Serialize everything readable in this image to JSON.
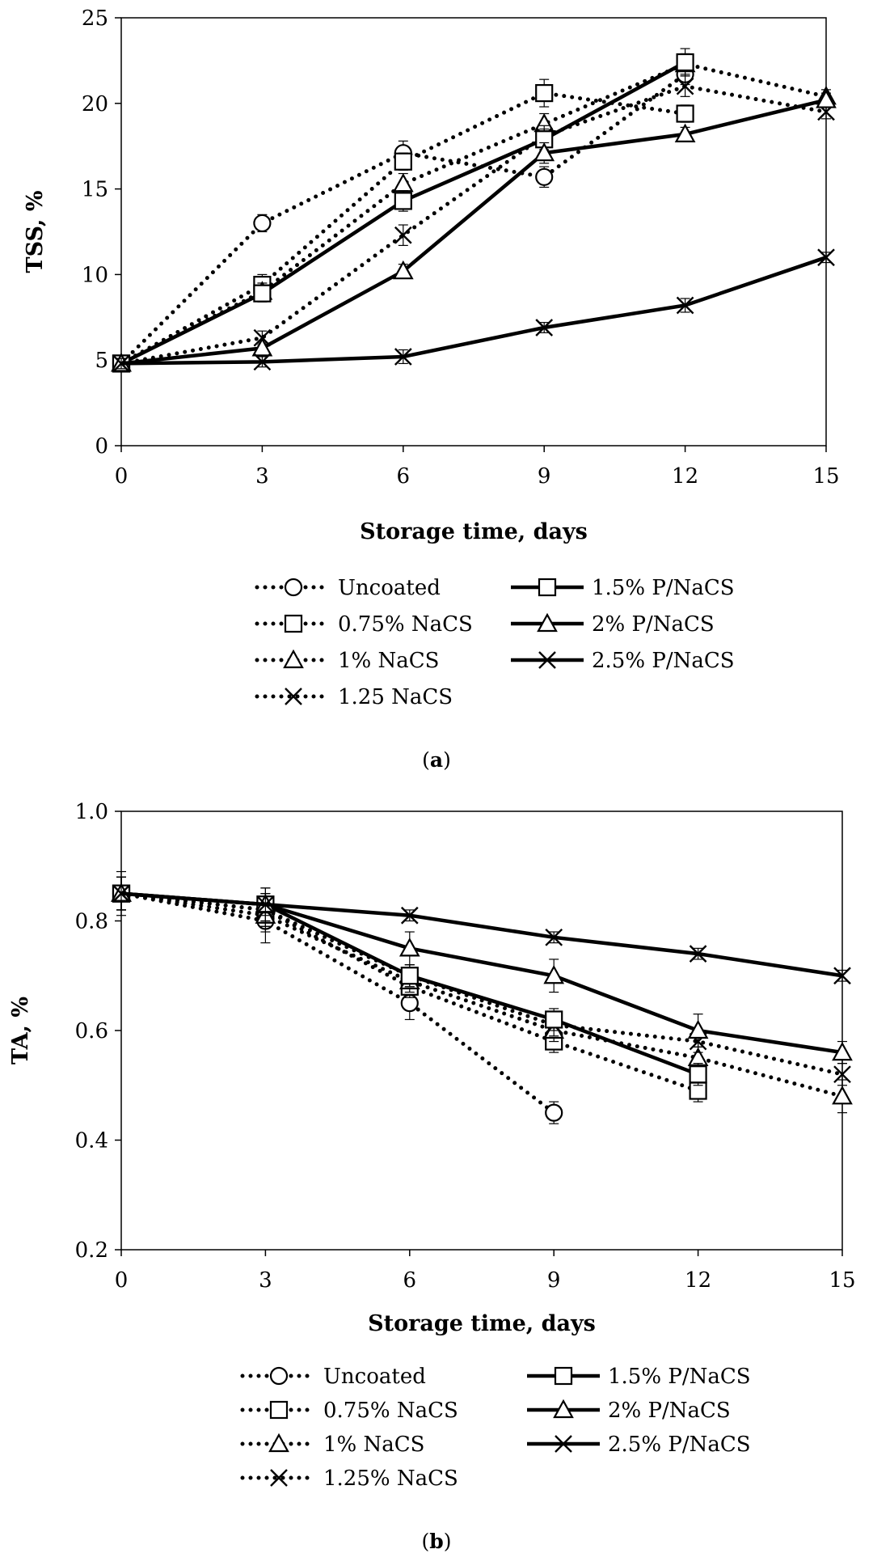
{
  "chart_data": [
    {
      "type": "line",
      "panel_label": "a",
      "xlabel": "Storage time, days",
      "ylabel": "TSS, %",
      "xlim": [
        0,
        15
      ],
      "ylim": [
        0,
        25
      ],
      "xticks": [
        0,
        3,
        6,
        9,
        12,
        15
      ],
      "yticks": [
        0,
        5,
        10,
        15,
        20,
        25
      ],
      "x": [
        0,
        3,
        6,
        9,
        12,
        15
      ],
      "series": [
        {
          "name": "Uncoated",
          "style": "dotted",
          "marker": "circle",
          "x": [
            0,
            3,
            6,
            9,
            12
          ],
          "values": [
            4.8,
            13.0,
            17.1,
            15.7,
            21.7
          ],
          "errors": [
            0.3,
            0.5,
            0.7,
            0.6,
            0.6
          ]
        },
        {
          "name": "0.75% NaCS",
          "style": "dotted",
          "marker": "square",
          "x": [
            0,
            3,
            6,
            9,
            12
          ],
          "values": [
            4.8,
            9.4,
            16.6,
            20.6,
            19.4
          ],
          "errors": [
            0.3,
            0.6,
            0.5,
            0.8,
            0.5
          ]
        },
        {
          "name": "1% NaCS",
          "style": "dotted",
          "marker": "triangle",
          "x": [
            0,
            3,
            6,
            9,
            12,
            15
          ],
          "values": [
            4.8,
            9.0,
            15.3,
            18.8,
            22.3,
            20.4
          ],
          "errors": [
            0.3,
            0.5,
            0.6,
            0.6,
            0.6,
            0.4
          ]
        },
        {
          "name": "1.25 NaCS",
          "style": "dotted",
          "marker": "x",
          "x": [
            0,
            3,
            6,
            9,
            12,
            15
          ],
          "values": [
            4.8,
            6.3,
            12.3,
            18.1,
            21.0,
            19.5
          ],
          "errors": [
            0.3,
            0.4,
            0.6,
            0.6,
            0.6,
            0.4
          ]
        },
        {
          "name": "1.5% P/NaCS",
          "style": "solid",
          "marker": "square",
          "x": [
            0,
            3,
            6,
            9,
            12
          ],
          "values": [
            4.8,
            8.9,
            14.3,
            17.9,
            22.4
          ],
          "errors": [
            0.3,
            0.5,
            0.6,
            0.6,
            0.8
          ]
        },
        {
          "name": "2% P/NaCS",
          "style": "solid",
          "marker": "triangle",
          "x": [
            0,
            3,
            6,
            9,
            12,
            15
          ],
          "values": [
            4.8,
            5.7,
            10.2,
            17.1,
            18.2,
            20.2
          ],
          "errors": [
            0.3,
            0.3,
            0.4,
            0.6,
            0.4,
            0.4
          ]
        },
        {
          "name": "2.5% P/NaCS",
          "style": "solid",
          "marker": "x",
          "x": [
            0,
            3,
            6,
            9,
            12,
            15
          ],
          "values": [
            4.8,
            4.9,
            5.2,
            6.9,
            8.2,
            11.0
          ],
          "errors": [
            0.3,
            0.3,
            0.4,
            0.3,
            0.4,
            0.3
          ]
        }
      ],
      "legend": {
        "left": [
          "Uncoated",
          "0.75% NaCS",
          "1% NaCS",
          "1.25 NaCS"
        ],
        "right": [
          "1.5% P/NaCS",
          "2% P/NaCS",
          "2.5% P/NaCS"
        ]
      }
    },
    {
      "type": "line",
      "panel_label": "b",
      "xlabel": "Storage time, days",
      "ylabel": "TA, %",
      "xlim": [
        0,
        15
      ],
      "ylim": [
        0.2,
        1.0
      ],
      "xticks": [
        0,
        3,
        6,
        9,
        12,
        15
      ],
      "yticks": [
        0.2,
        0.4,
        0.6,
        0.8,
        1.0
      ],
      "x": [
        0,
        3,
        6,
        9,
        12,
        15
      ],
      "series": [
        {
          "name": "Uncoated",
          "style": "dotted",
          "marker": "circle",
          "x": [
            0,
            3,
            6,
            9
          ],
          "values": [
            0.85,
            0.8,
            0.65,
            0.45
          ],
          "errors": [
            0.04,
            0.04,
            0.03,
            0.02
          ]
        },
        {
          "name": "0.75% NaCS",
          "style": "dotted",
          "marker": "square",
          "x": [
            0,
            3,
            6,
            9,
            12
          ],
          "values": [
            0.85,
            0.82,
            0.68,
            0.58,
            0.49
          ],
          "errors": [
            0.03,
            0.03,
            0.02,
            0.02,
            0.02
          ]
        },
        {
          "name": "1% NaCS",
          "style": "dotted",
          "marker": "triangle",
          "x": [
            0,
            3,
            6,
            9,
            12,
            15
          ],
          "values": [
            0.85,
            0.81,
            0.69,
            0.6,
            0.55,
            0.48
          ],
          "errors": [
            0.03,
            0.03,
            0.02,
            0.02,
            0.02,
            0.03
          ]
        },
        {
          "name": "1.25% NaCS",
          "style": "dotted",
          "marker": "x",
          "x": [
            0,
            3,
            6,
            9,
            12,
            15
          ],
          "values": [
            0.85,
            0.82,
            0.7,
            0.61,
            0.58,
            0.52
          ],
          "errors": [
            0.03,
            0.03,
            0.02,
            0.02,
            0.02,
            0.02
          ]
        },
        {
          "name": "1.5% P/NaCS",
          "style": "solid",
          "marker": "square",
          "x": [
            0,
            3,
            6,
            9,
            12
          ],
          "values": [
            0.85,
            0.83,
            0.7,
            0.62,
            0.52
          ],
          "errors": [
            0.03,
            0.03,
            0.02,
            0.02,
            0.02
          ]
        },
        {
          "name": "2% P/NaCS",
          "style": "solid",
          "marker": "triangle",
          "x": [
            0,
            3,
            6,
            9,
            12,
            15
          ],
          "values": [
            0.85,
            0.83,
            0.75,
            0.7,
            0.6,
            0.56
          ],
          "errors": [
            0.03,
            0.03,
            0.03,
            0.03,
            0.03,
            0.02
          ]
        },
        {
          "name": "2.5% P/NaCS",
          "style": "solid",
          "marker": "x",
          "x": [
            0,
            3,
            6,
            9,
            12,
            15
          ],
          "values": [
            0.85,
            0.83,
            0.81,
            0.77,
            0.74,
            0.7
          ],
          "errors": [
            0.03,
            0.02,
            0.01,
            0.01,
            0.01,
            0.01
          ]
        }
      ],
      "legend": {
        "left": [
          "Uncoated",
          "0.75% NaCS",
          "1% NaCS",
          "1.25% NaCS"
        ],
        "right": [
          "1.5% P/NaCS",
          "2% P/NaCS",
          "2.5% P/NaCS"
        ]
      }
    }
  ]
}
